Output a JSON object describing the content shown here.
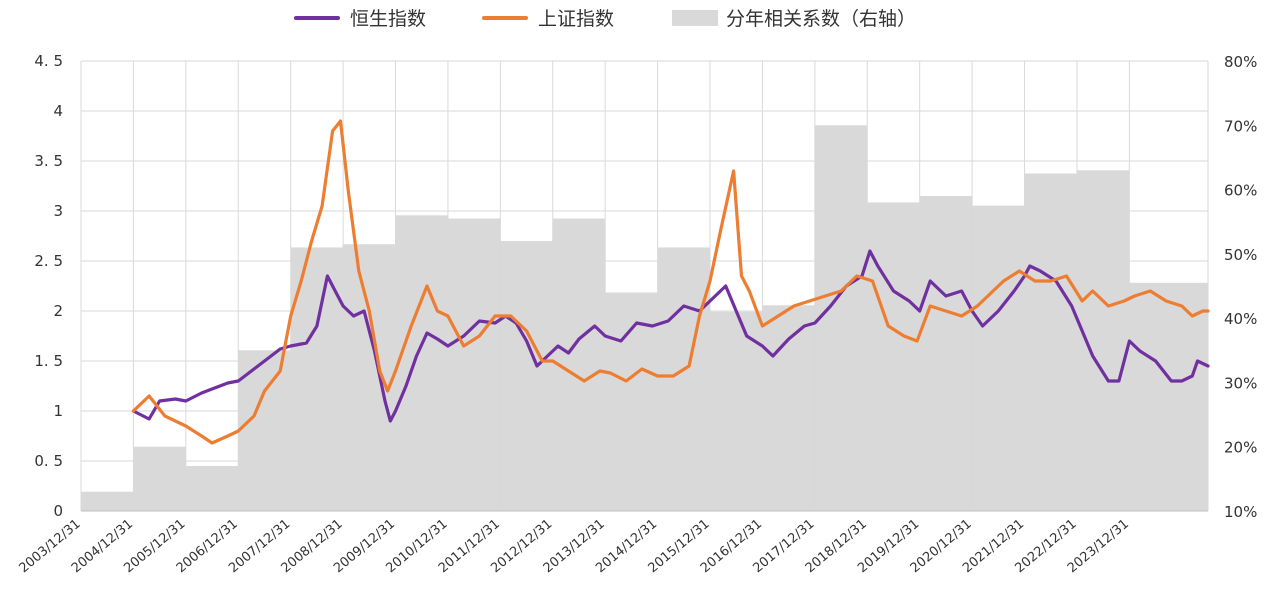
{
  "chart_data": {
    "type": "line",
    "title": "",
    "xlabel": "",
    "ylabel": "",
    "ylim": [
      0,
      4.5
    ],
    "y2lim": [
      0.1,
      0.8
    ],
    "grid": true,
    "legend_placement": "top-center",
    "y_ticks": [
      "0",
      "0. 5",
      "1",
      "1. 5",
      "2",
      "2. 5",
      "3",
      "3. 5",
      "4",
      "4. 5"
    ],
    "y2_ticks": [
      "10%",
      "20%",
      "30%",
      "40%",
      "50%",
      "60%",
      "70%",
      "80%"
    ],
    "x_ticks": [
      "2003/12/31",
      "2004/12/31",
      "2005/12/31",
      "2006/12/31",
      "2007/12/31",
      "2008/12/31",
      "2009/12/31",
      "2010/12/31",
      "2011/12/31",
      "2012/12/31",
      "2013/12/31",
      "2014/12/31",
      "2015/12/31",
      "2016/12/31",
      "2017/12/31",
      "2018/12/31",
      "2019/12/31",
      "2020/12/31",
      "2021/12/31",
      "2022/12/31",
      "2023/12/31"
    ],
    "series": [
      {
        "name": "恒生指数",
        "color": "#7030a0",
        "axis": "left",
        "x": [
          2004.0,
          2004.3,
          2004.5,
          2004.8,
          2005.0,
          2005.3,
          2005.5,
          2005.8,
          2006.0,
          2006.3,
          2006.5,
          2006.8,
          2007.0,
          2007.3,
          2007.5,
          2007.7,
          2007.85,
          2008.0,
          2008.2,
          2008.4,
          2008.6,
          2008.8,
          2008.9,
          2009.0,
          2009.2,
          2009.4,
          2009.6,
          2009.8,
          2010.0,
          2010.3,
          2010.6,
          2010.9,
          2011.1,
          2011.3,
          2011.5,
          2011.7,
          2011.9,
          2012.1,
          2012.3,
          2012.5,
          2012.8,
          2013.0,
          2013.3,
          2013.6,
          2013.9,
          2014.2,
          2014.5,
          2014.8,
          2015.0,
          2015.3,
          2015.5,
          2015.7,
          2016.0,
          2016.2,
          2016.5,
          2016.8,
          2017.0,
          2017.3,
          2017.6,
          2017.9,
          2018.05,
          2018.2,
          2018.5,
          2018.8,
          2019.0,
          2019.2,
          2019.5,
          2019.8,
          2020.0,
          2020.2,
          2020.5,
          2020.8,
          2021.0,
          2021.1,
          2021.3,
          2021.6,
          2021.9,
          2022.1,
          2022.3,
          2022.6,
          2022.8,
          2023.0,
          2023.2,
          2023.5,
          2023.8,
          2024.0,
          2024.2,
          2024.3,
          2024.5
        ],
        "values": [
          1.0,
          0.92,
          1.1,
          1.12,
          1.1,
          1.18,
          1.22,
          1.28,
          1.3,
          1.42,
          1.5,
          1.62,
          1.65,
          1.68,
          1.85,
          2.35,
          2.2,
          2.05,
          1.95,
          2.0,
          1.6,
          1.1,
          0.9,
          1.0,
          1.25,
          1.55,
          1.78,
          1.72,
          1.65,
          1.75,
          1.9,
          1.88,
          1.95,
          1.88,
          1.7,
          1.45,
          1.55,
          1.65,
          1.58,
          1.72,
          1.85,
          1.75,
          1.7,
          1.88,
          1.85,
          1.9,
          2.05,
          2.0,
          2.1,
          2.25,
          2.0,
          1.75,
          1.65,
          1.55,
          1.72,
          1.85,
          1.88,
          2.05,
          2.25,
          2.35,
          2.6,
          2.45,
          2.2,
          2.1,
          2.0,
          2.3,
          2.15,
          2.2,
          2.0,
          1.85,
          2.0,
          2.2,
          2.35,
          2.45,
          2.4,
          2.3,
          2.05,
          1.8,
          1.55,
          1.3,
          1.3,
          1.7,
          1.6,
          1.5,
          1.3,
          1.3,
          1.35,
          1.5,
          1.45
        ]
      },
      {
        "name": "上证指数",
        "color": "#ed7d31",
        "axis": "left",
        "x": [
          2004.0,
          2004.3,
          2004.6,
          2005.0,
          2005.3,
          2005.5,
          2005.8,
          2006.0,
          2006.3,
          2006.5,
          2006.8,
          2007.0,
          2007.2,
          2007.4,
          2007.6,
          2007.8,
          2007.95,
          2008.1,
          2008.3,
          2008.5,
          2008.7,
          2008.85,
          2009.0,
          2009.3,
          2009.6,
          2009.8,
          2010.0,
          2010.3,
          2010.6,
          2010.9,
          2011.2,
          2011.5,
          2011.8,
          2012.0,
          2012.3,
          2012.6,
          2012.9,
          2013.1,
          2013.4,
          2013.7,
          2014.0,
          2014.3,
          2014.6,
          2014.8,
          2015.0,
          2015.2,
          2015.45,
          2015.6,
          2015.75,
          2016.0,
          2016.3,
          2016.6,
          2016.9,
          2017.2,
          2017.5,
          2017.8,
          2018.1,
          2018.4,
          2018.7,
          2018.95,
          2019.2,
          2019.5,
          2019.8,
          2020.1,
          2020.4,
          2020.6,
          2020.9,
          2021.2,
          2021.5,
          2021.8,
          2022.1,
          2022.3,
          2022.6,
          2022.9,
          2023.1,
          2023.4,
          2023.7,
          2024.0,
          2024.2,
          2024.4,
          2024.5
        ],
        "values": [
          1.0,
          1.15,
          0.95,
          0.85,
          0.75,
          0.68,
          0.75,
          0.8,
          0.95,
          1.2,
          1.4,
          1.95,
          2.3,
          2.7,
          3.05,
          3.8,
          3.9,
          3.2,
          2.4,
          2.0,
          1.4,
          1.2,
          1.4,
          1.85,
          2.25,
          2.0,
          1.95,
          1.65,
          1.75,
          1.95,
          1.95,
          1.8,
          1.5,
          1.5,
          1.4,
          1.3,
          1.4,
          1.38,
          1.3,
          1.42,
          1.35,
          1.35,
          1.45,
          1.95,
          2.3,
          2.8,
          3.4,
          2.35,
          2.2,
          1.85,
          1.95,
          2.05,
          2.1,
          2.15,
          2.2,
          2.35,
          2.3,
          1.85,
          1.75,
          1.7,
          2.05,
          2.0,
          1.95,
          2.05,
          2.2,
          2.3,
          2.4,
          2.3,
          2.3,
          2.35,
          2.1,
          2.2,
          2.05,
          2.1,
          2.15,
          2.2,
          2.1,
          2.05,
          1.95,
          2.0,
          2.0
        ]
      }
    ],
    "bars": {
      "name": "分年相关系数（右轴）",
      "color": "#d9d9d9",
      "axis": "right",
      "x_start": [
        2003.0,
        2004.0,
        2005.0,
        2006.0,
        2007.0,
        2008.0,
        2009.0,
        2010.0,
        2011.0,
        2012.0,
        2013.0,
        2014.0,
        2015.0,
        2016.0,
        2017.0,
        2018.0,
        2019.0,
        2020.0,
        2021.0,
        2022.0,
        2023.0
      ],
      "values": [
        0.13,
        0.2,
        0.17,
        0.35,
        0.51,
        0.515,
        0.56,
        0.555,
        0.52,
        0.555,
        0.44,
        0.51,
        0.41,
        0.42,
        0.7,
        0.58,
        0.59,
        0.575,
        0.625,
        0.63,
        0.455
      ]
    },
    "x_range": [
      2003.0,
      2024.5
    ]
  }
}
